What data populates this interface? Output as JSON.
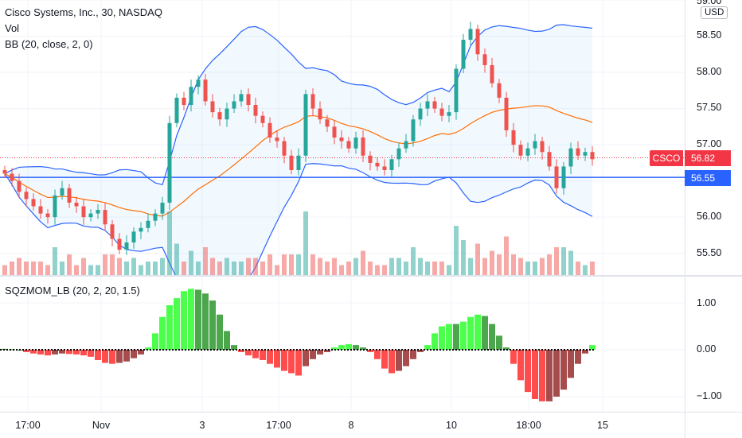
{
  "legend": {
    "symbol_line": "Cisco Systems, Inc., 30, NASDAQ",
    "vol_label": "Vol",
    "bb_label": "BB (20, close, 2, 0)"
  },
  "oscillator": {
    "label": "SQZMOM_LB (20, 2, 20, 1.5)"
  },
  "currency": "USD",
  "price_axis": {
    "ticks": [
      "59.00",
      "58.50",
      "58.00",
      "57.50",
      "57.00",
      "56.00",
      "55.50"
    ],
    "symbol_tag": "CSCO",
    "last_price": "56.82",
    "hline_price": "56.55"
  },
  "osc_axis": {
    "ticks": [
      "1.00",
      "0.00",
      "−1.00"
    ]
  },
  "time_axis": {
    "labels": [
      "17:00",
      "Nov",
      "3",
      "17:00",
      "8",
      "10",
      "18:00",
      "15"
    ]
  },
  "colors": {
    "up": "#26a69a",
    "down": "#ef5350",
    "bb_band": "#2962ff",
    "bb_basis": "#ff6d00",
    "hline": "#2962ff",
    "last_price": "#f23645",
    "mom_lime": "#00ff00",
    "mom_green": "#008000",
    "mom_red": "#ff0000",
    "mom_maroon": "#800000"
  },
  "chart_data": {
    "type": "candlestick",
    "title": "Cisco Systems, Inc., 30, NASDAQ",
    "ylim": [
      55.2,
      59.0
    ],
    "horizontal_line": 56.55,
    "last_price": 56.82,
    "close": [
      56.6,
      56.5,
      56.35,
      56.25,
      56.15,
      56.05,
      56.0,
      56.3,
      56.4,
      56.2,
      56.15,
      56.0,
      56.05,
      56.1,
      55.9,
      55.7,
      55.55,
      55.65,
      55.8,
      55.85,
      55.95,
      56.05,
      56.2,
      57.3,
      57.65,
      57.55,
      57.8,
      57.9,
      57.6,
      57.45,
      57.35,
      57.5,
      57.6,
      57.7,
      57.55,
      57.4,
      57.3,
      57.1,
      57.05,
      56.85,
      56.65,
      56.85,
      57.7,
      57.5,
      57.35,
      57.25,
      57.1,
      57.05,
      56.95,
      57.1,
      56.85,
      56.75,
      56.7,
      56.65,
      56.8,
      56.95,
      57.05,
      57.35,
      57.5,
      57.6,
      57.5,
      57.4,
      57.45,
      58.05,
      58.45,
      58.6,
      58.25,
      58.1,
      57.85,
      57.65,
      57.2,
      57.0,
      56.85,
      56.95,
      57.05,
      56.9,
      56.7,
      56.4,
      56.7,
      56.95,
      56.85,
      56.9,
      56.8
    ],
    "momentum": [
      0.02,
      0.01,
      0.0,
      -0.05,
      -0.08,
      -0.1,
      -0.12,
      -0.1,
      -0.08,
      -0.09,
      -0.1,
      -0.12,
      -0.15,
      -0.22,
      -0.28,
      -0.3,
      -0.28,
      -0.25,
      -0.18,
      -0.1,
      0.05,
      0.35,
      0.7,
      0.95,
      1.1,
      1.25,
      1.3,
      1.28,
      1.2,
      1.05,
      0.75,
      0.4,
      0.1,
      -0.05,
      -0.12,
      -0.18,
      -0.22,
      -0.3,
      -0.38,
      -0.45,
      -0.5,
      -0.55,
      -0.35,
      -0.2,
      -0.1,
      -0.05,
      0.05,
      0.1,
      0.12,
      0.1,
      0.05,
      -0.05,
      -0.2,
      -0.4,
      -0.5,
      -0.45,
      -0.35,
      -0.2,
      -0.05,
      0.1,
      0.35,
      0.5,
      0.55,
      0.55,
      0.6,
      0.7,
      0.75,
      0.72,
      0.55,
      0.3,
      0.05,
      -0.3,
      -0.65,
      -0.9,
      -1.05,
      -1.1,
      -1.1,
      -1.0,
      -0.85,
      -0.6,
      -0.3,
      -0.08,
      0.1
    ]
  }
}
